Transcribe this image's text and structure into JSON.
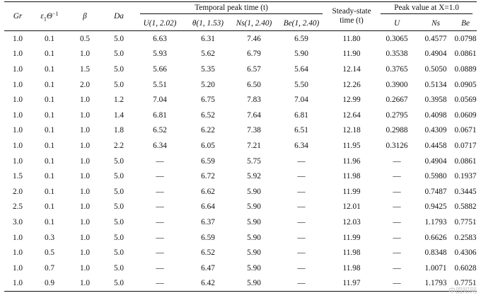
{
  "header": {
    "gr": "Gr",
    "eps": "ε",
    "eps_sub": "1",
    "theta": "Θ",
    "theta_sup": "−1",
    "beta": "β",
    "da": "Da",
    "temporal_group": "Temporal peak time (t)",
    "u_col": "U(1, 2.02)",
    "theta_col": "θ(1, 1.53)",
    "ns_col": "Ns(1, 2.40)",
    "be_col": "Be(1, 2.40)",
    "steady_line1": "Steady-state",
    "steady_line2": "time (t)",
    "peak_group": "Peak value at X=1.0",
    "peak_u": "U",
    "peak_ns": "Ns",
    "peak_be": "Be"
  },
  "rows": [
    [
      "1.0",
      "0.1",
      "0.5",
      "5.0",
      "6.63",
      "6.31",
      "7.46",
      "6.59",
      "11.80",
      "0.3065",
      "0.4577",
      "0.0798"
    ],
    [
      "1.0",
      "0.1",
      "1.0",
      "5.0",
      "5.93",
      "5.62",
      "6.79",
      "5.90",
      "11.90",
      "0.3538",
      "0.4904",
      "0.0861"
    ],
    [
      "1.0",
      "0.1",
      "1.5",
      "5.0",
      "5.66",
      "5.35",
      "6.57",
      "5.64",
      "12.14",
      "0.3765",
      "0.5050",
      "0.0889"
    ],
    [
      "1.0",
      "0.1",
      "2.0",
      "5.0",
      "5.51",
      "5.20",
      "6.50",
      "5.50",
      "12.26",
      "0.3900",
      "0.5134",
      "0.0905"
    ],
    [
      "1.0",
      "0.1",
      "1.0",
      "1.2",
      "7.04",
      "6.75",
      "7.83",
      "7.04",
      "12.99",
      "0.2667",
      "0.3958",
      "0.0569"
    ],
    [
      "1.0",
      "0.1",
      "1.0",
      "1.4",
      "6.81",
      "6.52",
      "7.64",
      "6.81",
      "12.64",
      "0.2795",
      "0.4098",
      "0.0609"
    ],
    [
      "1.0",
      "0.1",
      "1.0",
      "1.8",
      "6.52",
      "6.22",
      "7.38",
      "6.51",
      "12.18",
      "0.2988",
      "0.4309",
      "0.0671"
    ],
    [
      "1.0",
      "0.1",
      "1.0",
      "2.2",
      "6.34",
      "6.05",
      "7.21",
      "6.34",
      "11.95",
      "0.3126",
      "0.4458",
      "0.0717"
    ],
    [
      "1.0",
      "0.1",
      "1.0",
      "5.0",
      "—",
      "6.59",
      "5.75",
      "—",
      "11.96",
      "—",
      "0.4904",
      "0.0861"
    ],
    [
      "1.5",
      "0.1",
      "1.0",
      "5.0",
      "—",
      "6.72",
      "5.92",
      "—",
      "11.98",
      "—",
      "0.5980",
      "0.1937"
    ],
    [
      "2.0",
      "0.1",
      "1.0",
      "5.0",
      "—",
      "6.62",
      "5.90",
      "—",
      "11.99",
      "—",
      "0.7487",
      "0.3445"
    ],
    [
      "2.5",
      "0.1",
      "1.0",
      "5.0",
      "—",
      "6.64",
      "5.90",
      "—",
      "12.01",
      "—",
      "0.9425",
      "0.5882"
    ],
    [
      "3.0",
      "0.1",
      "1.0",
      "5.0",
      "—",
      "6.37",
      "5.90",
      "—",
      "12.03",
      "—",
      "1.1793",
      "0.7751"
    ],
    [
      "1.0",
      "0.3",
      "1.0",
      "5.0",
      "—",
      "6.59",
      "5.90",
      "—",
      "11.99",
      "—",
      "0.6626",
      "0.2583"
    ],
    [
      "1.0",
      "0.5",
      "1.0",
      "5.0",
      "—",
      "6.52",
      "5.90",
      "—",
      "11.98",
      "—",
      "0.8348",
      "0.4306"
    ],
    [
      "1.0",
      "0.7",
      "1.0",
      "5.0",
      "—",
      "6.47",
      "5.90",
      "—",
      "11.98",
      "—",
      "1.0071",
      "0.6028"
    ],
    [
      "1.0",
      "0.9",
      "1.0",
      "5.0",
      "—",
      "6.42",
      "5.90",
      "—",
      "11.97",
      "—",
      "1.1793",
      "0.7751"
    ]
  ],
  "watermark": "中国知网"
}
